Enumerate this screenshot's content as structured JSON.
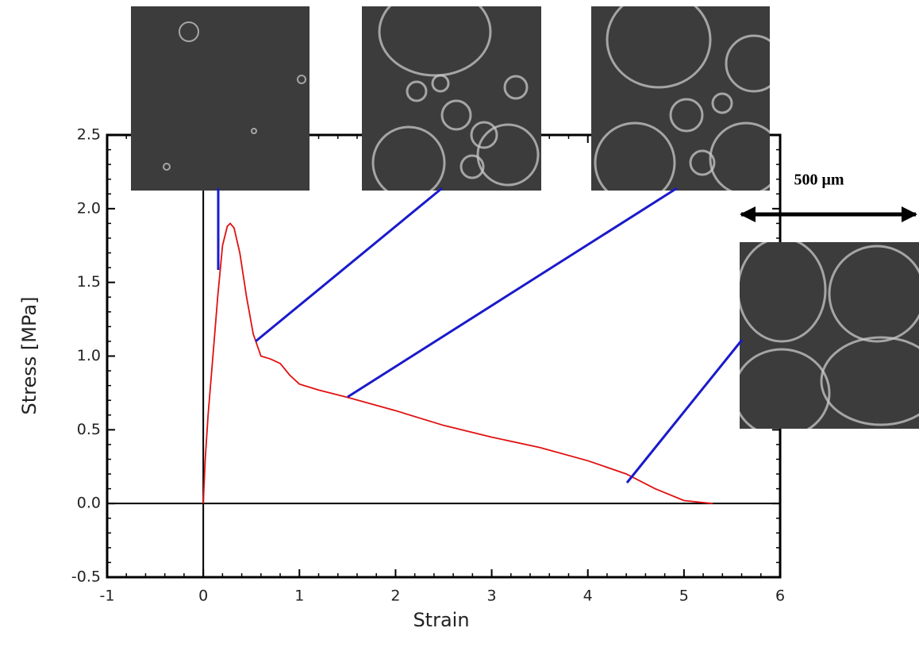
{
  "chart_data": {
    "type": "line",
    "x": [
      0,
      0.02,
      0.05,
      0.1,
      0.15,
      0.2,
      0.25,
      0.28,
      0.32,
      0.38,
      0.45,
      0.52,
      0.6,
      0.7,
      0.8,
      0.9,
      1.0,
      1.2,
      1.5,
      2.0,
      2.5,
      3.0,
      3.5,
      4.0,
      4.4,
      4.7,
      5.0,
      5.3
    ],
    "values": [
      0,
      0.3,
      0.6,
      1.0,
      1.4,
      1.75,
      1.88,
      1.9,
      1.87,
      1.7,
      1.4,
      1.15,
      1.0,
      0.98,
      0.95,
      0.87,
      0.81,
      0.77,
      0.72,
      0.63,
      0.53,
      0.45,
      0.38,
      0.29,
      0.2,
      0.1,
      0.02,
      0.0
    ],
    "color": "#e01010",
    "x_label": "Strain",
    "y_label": "Stress [MPa]",
    "xlim": [
      -1,
      6
    ],
    "ylim": [
      -0.5,
      2.5
    ],
    "xticks": [
      -1,
      0,
      1,
      2,
      3,
      4,
      5,
      6
    ],
    "yticks": [
      -0.5,
      {
        "value": 0,
        "label": "0.0"
      },
      0.5,
      {
        "value": 1,
        "label": "1.0"
      },
      1.5,
      {
        "value": 2,
        "label": "2.0"
      },
      2.5
    ],
    "scale_bar_label": "500 μm"
  }
}
